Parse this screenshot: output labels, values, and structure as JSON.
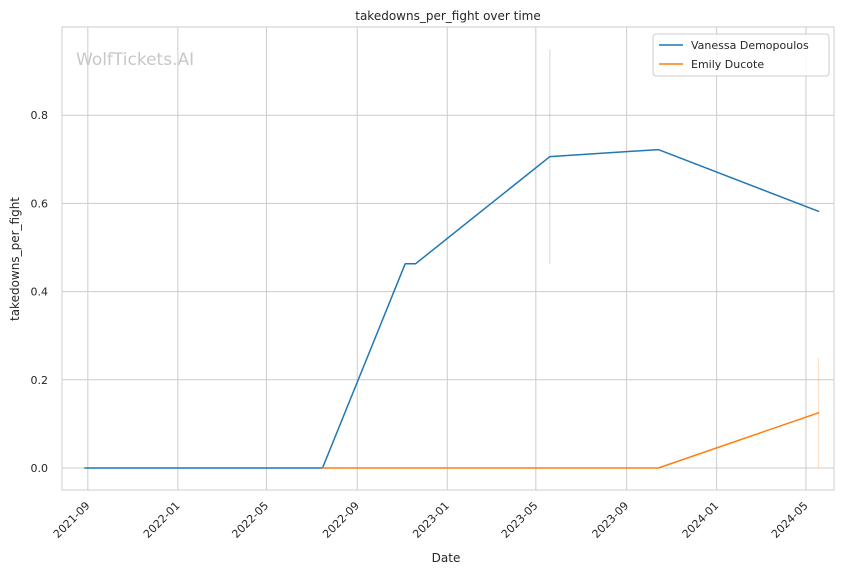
{
  "chart_data": {
    "type": "line",
    "title": "takedowns_per_fight over time",
    "xlabel": "Date",
    "ylabel": "takedowns_per_fight",
    "watermark": "WolfTickets.AI",
    "xlim": [
      "2021-07-28",
      "2024-06-08"
    ],
    "ylim": [
      -0.05,
      1.0
    ],
    "x_ticks": [
      "2021-09",
      "2022-01",
      "2022-05",
      "2022-09",
      "2023-01",
      "2023-05",
      "2023-09",
      "2024-01",
      "2024-05"
    ],
    "y_ticks": [
      0.0,
      0.2,
      0.4,
      0.6,
      0.8
    ],
    "y_tick_labels": [
      "0.0",
      "0.2",
      "0.4",
      "0.6",
      "0.8"
    ],
    "grid": true,
    "legend_position": "top-right",
    "series": [
      {
        "name": "Vanessa Demopoulos",
        "color": "#1f77b4",
        "points": [
          {
            "x": "2021-08-28",
            "y": 0.0
          },
          {
            "x": "2022-07-16",
            "y": 0.0
          },
          {
            "x": "2022-11-05",
            "y": 0.463
          },
          {
            "x": "2022-11-19",
            "y": 0.463
          },
          {
            "x": "2023-05-20",
            "y": 0.706
          },
          {
            "x": "2023-10-14",
            "y": 0.722
          },
          {
            "x": "2024-05-18",
            "y": 0.582
          }
        ],
        "error_bars": [
          {
            "x": "2023-05-20",
            "low": 0.463,
            "high": 0.95
          }
        ]
      },
      {
        "name": "Emily Ducote",
        "color": "#ff7f0e",
        "points": [
          {
            "x": "2022-07-16",
            "y": 0.0
          },
          {
            "x": "2023-10-14",
            "y": 0.0
          },
          {
            "x": "2024-05-18",
            "y": 0.125
          }
        ],
        "error_bars": [
          {
            "x": "2024-05-18",
            "low": 0.0,
            "high": 0.25
          }
        ]
      }
    ]
  }
}
